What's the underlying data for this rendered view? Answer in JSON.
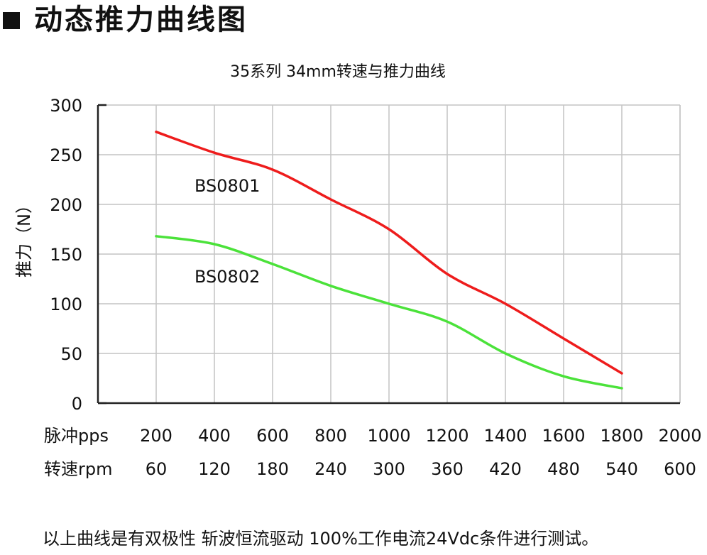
{
  "header": {
    "title": "动态推力曲线图"
  },
  "footer": {
    "note": "以上曲线是有双极性 斩波恒流驱动 100%工作电流24Vdc条件进行测试。"
  },
  "chart_data": {
    "type": "line",
    "title": "35系列 34mm转速与推力曲线",
    "ylabel": "推力（N）",
    "ylim": [
      0,
      300
    ],
    "yticks": [
      0,
      50,
      100,
      150,
      200,
      250,
      300
    ],
    "xlim": [
      0,
      2000
    ],
    "xticks": [
      200,
      400,
      600,
      800,
      1000,
      1200,
      1400,
      1600,
      1800,
      2000
    ],
    "x_axis_rows": [
      {
        "label": "脉冲pps",
        "values": [
          "200",
          "400",
          "600",
          "800",
          "1000",
          "1200",
          "1400",
          "1600",
          "1800",
          "2000"
        ]
      },
      {
        "label": "转速rpm",
        "values": [
          "60",
          "120",
          "180",
          "240",
          "300",
          "360",
          "420",
          "480",
          "540",
          "600"
        ]
      }
    ],
    "grid": true,
    "series": [
      {
        "name": "BS0801",
        "color": "#ee1c1c",
        "x": [
          200,
          400,
          600,
          800,
          1000,
          1200,
          1400,
          1600,
          1800
        ],
        "y": [
          273,
          252,
          235,
          205,
          175,
          130,
          100,
          65,
          30
        ]
      },
      {
        "name": "BS0802",
        "color": "#4be23a",
        "x": [
          200,
          400,
          600,
          800,
          1000,
          1200,
          1400,
          1600,
          1800
        ],
        "y": [
          168,
          160,
          140,
          118,
          100,
          82,
          50,
          27,
          15
        ]
      }
    ]
  }
}
